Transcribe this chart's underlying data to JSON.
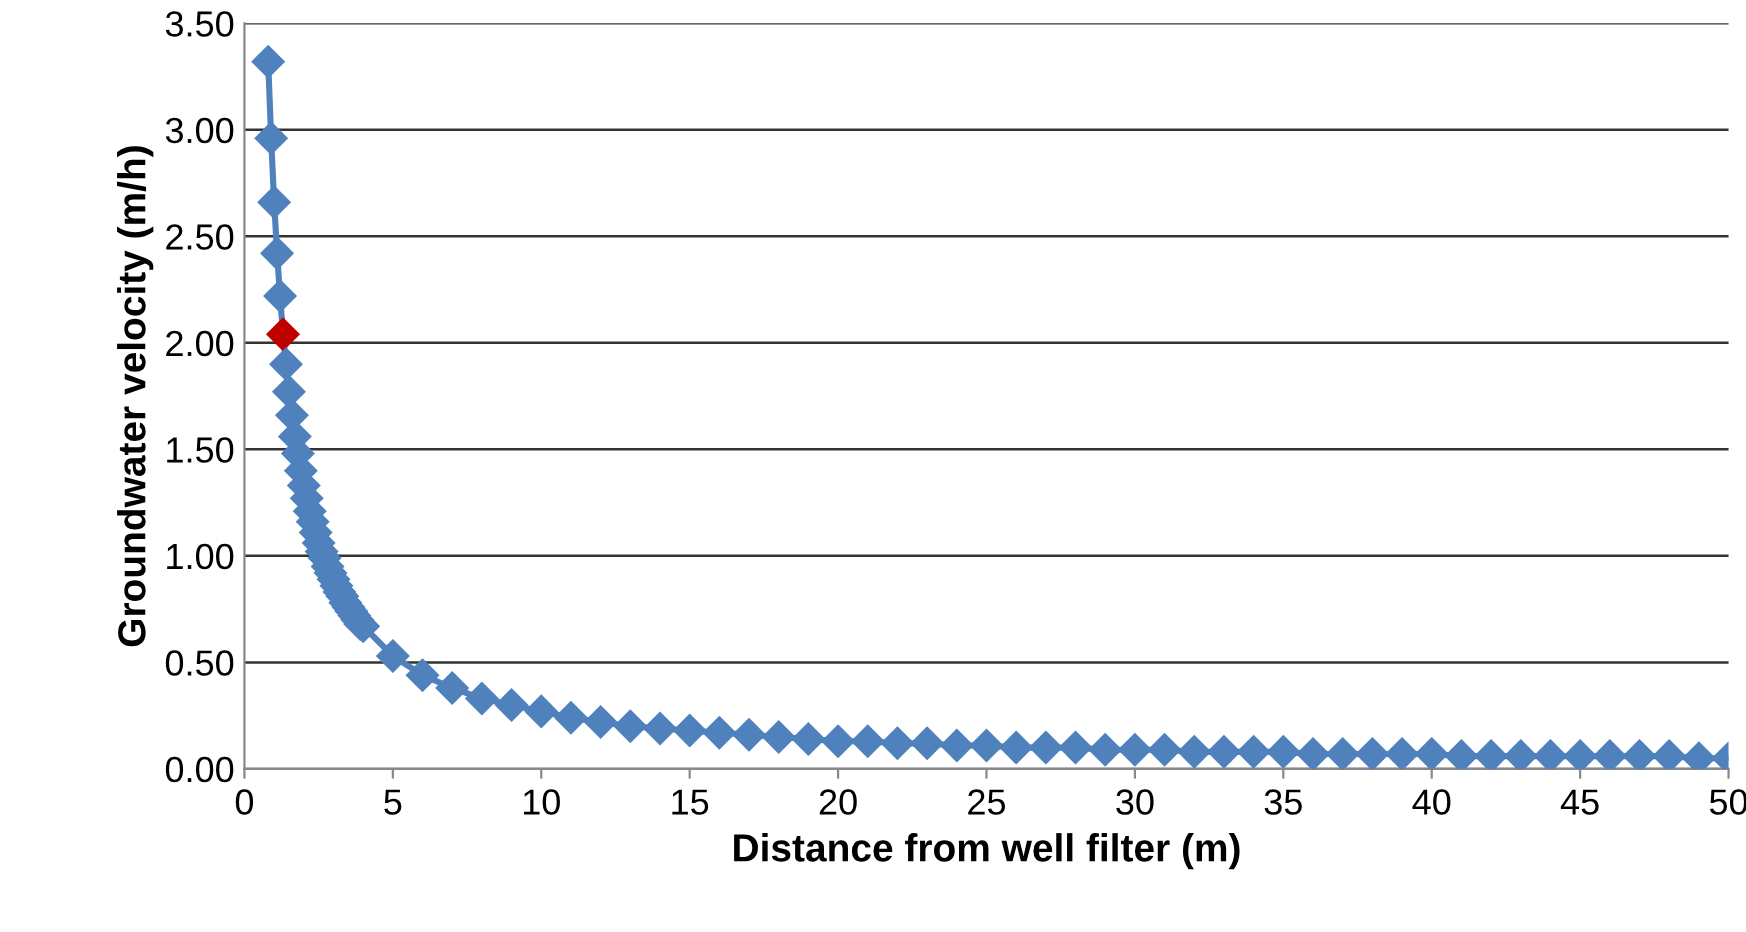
{
  "chart_data": {
    "type": "line",
    "xlabel": "Distance from well filter (m)",
    "ylabel": "Groundwater velocity (m/h)",
    "xlim": [
      0,
      50
    ],
    "xticks": [
      0,
      5,
      10,
      15,
      20,
      25,
      30,
      35,
      40,
      45,
      50
    ],
    "ylim": [
      0,
      3.5
    ],
    "yticks": [
      {
        "value": 0,
        "label": "0.00"
      },
      {
        "value": 0.5,
        "label": "0.50"
      },
      {
        "value": 1,
        "label": "1.00"
      },
      {
        "value": 1.5,
        "label": "1.50"
      },
      {
        "value": 2,
        "label": "2.00"
      },
      {
        "value": 2.5,
        "label": "2.50"
      },
      {
        "value": 3,
        "label": "3.00"
      },
      {
        "value": 3.5,
        "label": "3.50"
      }
    ],
    "grid": "y",
    "marker": "diamond",
    "line_style": "solid",
    "series": [
      {
        "color": "#4f81bd",
        "x": [
          0.8,
          0.9,
          1.0,
          1.1,
          1.2,
          1.3,
          1.4,
          1.5,
          1.6,
          1.7,
          1.8,
          1.9,
          2.0,
          2.1,
          2.2,
          2.3,
          2.4,
          2.5,
          2.6,
          2.7,
          2.8,
          2.9,
          3.0,
          3.1,
          3.2,
          3.3,
          3.4,
          3.5,
          3.6,
          3.7,
          3.8,
          3.9,
          4.0,
          5,
          6,
          7,
          8,
          9,
          10,
          11,
          12,
          13,
          14,
          15,
          16,
          17,
          18,
          19,
          20,
          21,
          22,
          23,
          24,
          25,
          26,
          27,
          28,
          29,
          30,
          31,
          32,
          33,
          34,
          35,
          36,
          37,
          38,
          39,
          40,
          41,
          42,
          43,
          44,
          45,
          46,
          47,
          48,
          49,
          50
        ],
        "values": [
          3.32,
          2.96,
          2.66,
          2.42,
          2.22,
          2.04,
          1.9,
          1.77,
          1.66,
          1.56,
          1.48,
          1.4,
          1.33,
          1.27,
          1.21,
          1.16,
          1.11,
          1.06,
          1.02,
          0.99,
          0.95,
          0.92,
          0.89,
          0.86,
          0.83,
          0.81,
          0.78,
          0.76,
          0.74,
          0.72,
          0.7,
          0.68,
          0.67,
          0.53,
          0.44,
          0.38,
          0.33,
          0.3,
          0.27,
          0.24,
          0.22,
          0.2,
          0.19,
          0.18,
          0.17,
          0.16,
          0.15,
          0.14,
          0.13,
          0.13,
          0.12,
          0.12,
          0.11,
          0.11,
          0.1,
          0.1,
          0.1,
          0.09,
          0.09,
          0.09,
          0.08,
          0.08,
          0.08,
          0.08,
          0.07,
          0.07,
          0.07,
          0.07,
          0.07,
          0.06,
          0.06,
          0.06,
          0.06,
          0.06,
          0.06,
          0.06,
          0.06,
          0.05,
          0.05
        ],
        "colors": [
          "#4f81bd",
          "#4f81bd",
          "#4f81bd",
          "#4f81bd",
          "#4f81bd",
          "#c00000",
          "#4f81bd",
          "#4f81bd",
          "#4f81bd",
          "#4f81bd",
          "#4f81bd",
          "#4f81bd",
          "#4f81bd",
          "#4f81bd",
          "#4f81bd",
          "#4f81bd",
          "#4f81bd",
          "#4f81bd",
          "#4f81bd",
          "#4f81bd",
          "#4f81bd",
          "#4f81bd",
          "#4f81bd",
          "#4f81bd",
          "#4f81bd",
          "#4f81bd",
          "#4f81bd",
          "#4f81bd",
          "#4f81bd",
          "#4f81bd",
          "#4f81bd",
          "#4f81bd",
          "#4f81bd",
          "#4f81bd",
          "#4f81bd",
          "#4f81bd",
          "#4f81bd",
          "#4f81bd",
          "#4f81bd",
          "#4f81bd",
          "#4f81bd",
          "#4f81bd",
          "#4f81bd",
          "#4f81bd",
          "#4f81bd",
          "#4f81bd",
          "#4f81bd",
          "#4f81bd",
          "#4f81bd",
          "#4f81bd",
          "#4f81bd",
          "#4f81bd",
          "#4f81bd",
          "#4f81bd",
          "#4f81bd",
          "#4f81bd",
          "#4f81bd",
          "#4f81bd",
          "#4f81bd",
          "#4f81bd",
          "#4f81bd",
          "#4f81bd",
          "#4f81bd",
          "#4f81bd",
          "#4f81bd",
          "#4f81bd",
          "#4f81bd",
          "#4f81bd",
          "#4f81bd",
          "#4f81bd",
          "#4f81bd",
          "#4f81bd",
          "#4f81bd",
          "#4f81bd",
          "#4f81bd",
          "#4f81bd",
          "#4f81bd",
          "#4f81bd",
          "#4f81bd"
        ]
      }
    ]
  }
}
